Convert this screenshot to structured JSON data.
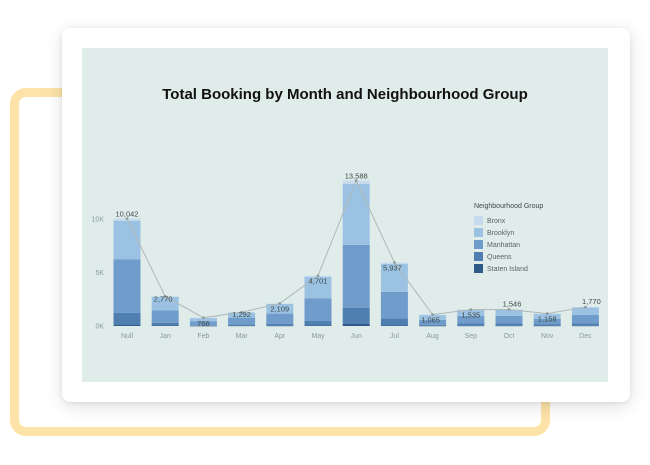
{
  "chart_data": {
    "type": "bar",
    "stacked": true,
    "title": "Total Booking by Month and Neighbourhood Group",
    "categories": [
      "Null",
      "Jan",
      "Feb",
      "Mar",
      "Apr",
      "May",
      "Jun",
      "Jul",
      "Aug",
      "Sep",
      "Oct",
      "Nov",
      "Dec"
    ],
    "y_ticks": [
      "10K",
      "5K",
      "0K"
    ],
    "ylim": [
      0,
      14000
    ],
    "grid": false,
    "legend": {
      "title": "Neighbourhood Group",
      "placement": "right"
    },
    "series": [
      {
        "name": "Bronx",
        "color": "#c6dcee",
        "values": [
          200,
          60,
          20,
          30,
          50,
          110,
          300,
          140,
          40,
          35,
          35,
          30,
          40
        ]
      },
      {
        "name": "Brooklyn",
        "color": "#9cc2e3",
        "values": [
          3600,
          1260,
          300,
          480,
          900,
          2000,
          5700,
          2600,
          450,
          570,
          560,
          450,
          700
        ]
      },
      {
        "name": "Manhattan",
        "color": "#6f9cca",
        "values": [
          5000,
          1150,
          380,
          620,
          950,
          2120,
          5900,
          2500,
          450,
          700,
          700,
          500,
          780
        ]
      },
      {
        "name": "Queens",
        "color": "#4f7fb1",
        "values": [
          1150,
          250,
          50,
          130,
          180,
          420,
          1500,
          620,
          100,
          200,
          220,
          150,
          220
        ]
      },
      {
        "name": "Staten Island",
        "color": "#2f5a86",
        "values": [
          92,
          50,
          16,
          32,
          29,
          51,
          188,
          77,
          25,
          30,
          31,
          28,
          30
        ]
      }
    ],
    "totals": [
      10042,
      2770,
      766,
      1292,
      2109,
      4701,
      13588,
      5937,
      1065,
      1535,
      1546,
      1158,
      1770
    ],
    "total_labels": [
      "10,042",
      "2,770",
      "766",
      "1,292",
      "2,109",
      "4,701",
      "13,588",
      "5,937",
      "1,065",
      "1,535",
      "1,546",
      "1,158",
      "1,770"
    ],
    "colors": {
      "total_line": "#b0b8b6",
      "panel_bg": "#dfece9"
    }
  }
}
